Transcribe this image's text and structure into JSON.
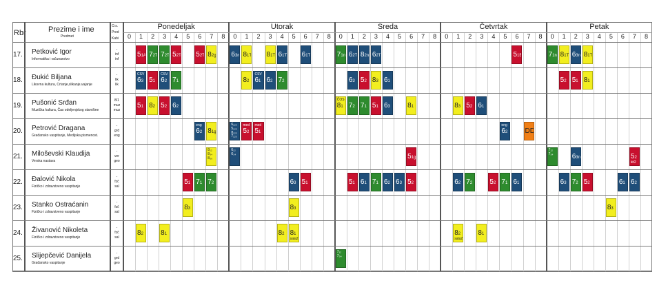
{
  "header": {
    "rbr": "Rbr",
    "name_title": "Prezime i ime",
    "name_sub": "Predmet",
    "os_lines": [
      "O.s.",
      "Pred",
      "Kabi"
    ]
  },
  "days": [
    {
      "label": "Ponedeljak",
      "periods": [
        "0",
        "1",
        "2",
        "3",
        "4",
        "5",
        "6",
        "7",
        "8"
      ]
    },
    {
      "label": "Utorak",
      "periods": [
        "0",
        "1",
        "2",
        "3",
        "4",
        "5",
        "6",
        "7",
        "8"
      ]
    },
    {
      "label": "Sreda",
      "periods": [
        "0",
        "1",
        "2",
        "3",
        "4",
        "5",
        "6",
        "7",
        "8"
      ]
    },
    {
      "label": "Četvrtak",
      "periods": [
        "0",
        "1",
        "2",
        "3",
        "4",
        "5",
        "6",
        "7",
        "8"
      ]
    },
    {
      "label": "Petak",
      "periods": [
        "0",
        "1",
        "2",
        "3",
        "4",
        "5",
        "6",
        "7",
        "8"
      ]
    }
  ],
  "colors": {
    "red": "#c8102e",
    "green": "#2e8b2e",
    "blue": "#1f4e79",
    "yellow": "#f2ee1f",
    "orange": "#f07f16"
  },
  "rows": [
    {
      "num": "17.",
      "name": "Petković Igor",
      "subject": "Informatika i računarstvo",
      "os": [
        "-",
        "inf",
        "inf"
      ],
      "cells": [
        {
          "d": 0,
          "p": 1,
          "c": "red",
          "t": "5",
          "s": "1A"
        },
        {
          "d": 0,
          "p": 2,
          "c": "green",
          "t": "7",
          "s": "2T"
        },
        {
          "d": 0,
          "p": 3,
          "c": "green",
          "t": "7",
          "s": "2T"
        },
        {
          "d": 0,
          "p": 4,
          "c": "red",
          "t": "5",
          "s": "2TT"
        },
        {
          "d": 0,
          "p": 6,
          "c": "red",
          "t": "5",
          "s": "2T"
        },
        {
          "d": 0,
          "p": 7,
          "c": "yellow",
          "t": "8",
          "s": "2gr"
        },
        {
          "d": 1,
          "p": 0,
          "c": "blue",
          "t": "6",
          "s": "3nk"
        },
        {
          "d": 1,
          "p": 1,
          "c": "yellow",
          "t": "8",
          "s": "1T1"
        },
        {
          "d": 1,
          "p": 3,
          "c": "yellow",
          "t": "8",
          "s": "1T2"
        },
        {
          "d": 1,
          "p": 4,
          "c": "blue",
          "t": "6",
          "s": "1T1"
        },
        {
          "d": 1,
          "p": 6,
          "c": "blue",
          "t": "6",
          "s": "1T"
        },
        {
          "d": 2,
          "p": 0,
          "c": "green",
          "t": "7",
          "s": "1nk"
        },
        {
          "d": 2,
          "p": 1,
          "c": "blue",
          "t": "6",
          "s": "2T2"
        },
        {
          "d": 2,
          "p": 2,
          "c": "blue",
          "t": "8",
          "s": "2nk"
        },
        {
          "d": 2,
          "p": 3,
          "c": "blue",
          "t": "6",
          "s": "2T1"
        },
        {
          "d": 3,
          "p": 6,
          "c": "red",
          "t": "5",
          "s": "1B"
        },
        {
          "d": 4,
          "p": 0,
          "c": "green",
          "t": "7",
          "s": "1nk"
        },
        {
          "d": 4,
          "p": 1,
          "c": "yellow",
          "t": "8",
          "s": "1T2"
        },
        {
          "d": 4,
          "p": 2,
          "c": "blue",
          "t": "6",
          "s": "3nk"
        },
        {
          "d": 4,
          "p": 3,
          "c": "yellow",
          "t": "8",
          "s": "1T"
        }
      ]
    },
    {
      "num": "18.",
      "name": "Đukić Biljana",
      "subject": "Likovna kultura, Crtanje,slikanje,vajanje",
      "os": [
        "-",
        "lik",
        "lik"
      ],
      "cells": [
        {
          "d": 0,
          "p": 1,
          "c": "blue",
          "t": "6",
          "s": "3",
          "top": "CSV"
        },
        {
          "d": 0,
          "p": 2,
          "c": "red",
          "t": "5",
          "s": "1"
        },
        {
          "d": 0,
          "p": 3,
          "c": "blue",
          "t": "6",
          "s": "2",
          "top": "CSV"
        },
        {
          "d": 0,
          "p": 4,
          "c": "green",
          "t": "7",
          "s": "1"
        },
        {
          "d": 1,
          "p": 1,
          "c": "yellow",
          "t": "8",
          "s": "2"
        },
        {
          "d": 1,
          "p": 2,
          "c": "blue",
          "t": "6",
          "s": "1",
          "top": "CSV"
        },
        {
          "d": 1,
          "p": 3,
          "c": "blue",
          "t": "6",
          "s": "2"
        },
        {
          "d": 1,
          "p": 4,
          "c": "green",
          "t": "7",
          "s": "2"
        },
        {
          "d": 2,
          "p": 1,
          "c": "blue",
          "t": "6",
          "s": "3"
        },
        {
          "d": 2,
          "p": 2,
          "c": "red",
          "t": "5",
          "s": "2"
        },
        {
          "d": 2,
          "p": 3,
          "c": "yellow",
          "t": "8",
          "s": "3"
        },
        {
          "d": 2,
          "p": 4,
          "c": "blue",
          "t": "6",
          "s": "1"
        },
        {
          "d": 4,
          "p": 1,
          "c": "red",
          "t": "5",
          "s": "2"
        },
        {
          "d": 4,
          "p": 2,
          "c": "red",
          "t": "5",
          "s": "1"
        },
        {
          "d": 4,
          "p": 3,
          "c": "yellow",
          "t": "8",
          "s": "1"
        }
      ]
    },
    {
      "num": "19.",
      "name": "Pušonić Srđan",
      "subject": "Muzička kultura, Čas odeljenjskog starešine",
      "os": [
        "8/1",
        "muz",
        "muz"
      ],
      "cells": [
        {
          "d": 0,
          "p": 1,
          "c": "red",
          "t": "5",
          "s": "1"
        },
        {
          "d": 0,
          "p": 2,
          "c": "yellow",
          "t": "8",
          "s": "2"
        },
        {
          "d": 0,
          "p": 3,
          "c": "red",
          "t": "5",
          "s": "2"
        },
        {
          "d": 0,
          "p": 4,
          "c": "blue",
          "t": "6",
          "s": "2"
        },
        {
          "d": 2,
          "p": 0,
          "c": "yellow",
          "t": "8",
          "s": "1",
          "top": "ČOS"
        },
        {
          "d": 2,
          "p": 1,
          "c": "green",
          "t": "7",
          "s": "2"
        },
        {
          "d": 2,
          "p": 2,
          "c": "green",
          "t": "7",
          "s": "1"
        },
        {
          "d": 2,
          "p": 3,
          "c": "red",
          "t": "5",
          "s": "1"
        },
        {
          "d": 2,
          "p": 4,
          "c": "blue",
          "t": "6",
          "s": "3"
        },
        {
          "d": 2,
          "p": 6,
          "c": "yellow",
          "t": "8",
          "s": "1"
        },
        {
          "d": 3,
          "p": 1,
          "c": "yellow",
          "t": "8",
          "s": "3"
        },
        {
          "d": 3,
          "p": 2,
          "c": "red",
          "t": "5",
          "s": "2"
        },
        {
          "d": 3,
          "p": 3,
          "c": "blue",
          "t": "6",
          "s": "1"
        }
      ]
    },
    {
      "num": "20.",
      "name": "Petrović Dragana",
      "subject": "Građansko vaspitanje, Medijska pismenost.",
      "os": [
        "-",
        "grd",
        "eng"
      ],
      "cells": [
        {
          "d": 0,
          "p": 6,
          "c": "blue",
          "t": "6",
          "s": "2",
          "top": "eng"
        },
        {
          "d": 0,
          "p": 7,
          "c": "yellow",
          "t": "8",
          "s": "1gr"
        },
        {
          "d": 1,
          "p": 0,
          "c": "blue",
          "small": [
            "6₁₂₃",
            "5₁₂₃",
            "8₁₂₃",
            "7₁₂₃"
          ]
        },
        {
          "d": 1,
          "p": 1,
          "c": "red",
          "t": "5",
          "s": "2",
          "top": "med"
        },
        {
          "d": 1,
          "p": 2,
          "c": "red",
          "t": "5",
          "s": "1",
          "top": "med"
        },
        {
          "d": 3,
          "p": 5,
          "c": "blue",
          "t": "6",
          "s": "2",
          "top": "eng"
        },
        {
          "d": 3,
          "p": 7,
          "c": "orange",
          "t": "DD",
          "s": "[]"
        }
      ]
    },
    {
      "num": "21.",
      "name": "Miloševski Klaudija",
      "subject": "Verska nastava",
      "os": [
        "-",
        "ver",
        "geo"
      ],
      "cells": [
        {
          "d": 0,
          "p": 7,
          "c": "yellow",
          "small": [
            "8₁₂",
            "8₃₄",
            "8₅₆"
          ]
        },
        {
          "d": 1,
          "p": 0,
          "c": "blue",
          "small": [
            "6₁₂",
            "6₃₄"
          ]
        },
        {
          "d": 2,
          "p": 6,
          "c": "red",
          "t": "5",
          "s": "1gr"
        },
        {
          "d": 4,
          "p": 0,
          "c": "green",
          "small": [
            "7₁₂",
            "7₃₄"
          ]
        },
        {
          "d": 4,
          "p": 2,
          "c": "blue",
          "t": "6",
          "s": "3nk"
        },
        {
          "d": 4,
          "p": 7,
          "c": "red",
          "t": "5",
          "s": "2",
          "bot": "kit2"
        }
      ]
    },
    {
      "num": "22.",
      "name": "Đalović Nikola",
      "subject": "Fizičko i zdravstveno vaspitanje",
      "os": [
        "-",
        "fzč",
        "sal"
      ],
      "cells": [
        {
          "d": 0,
          "p": 5,
          "c": "red",
          "t": "5",
          "s": "1"
        },
        {
          "d": 0,
          "p": 6,
          "c": "green",
          "t": "7",
          "s": "1"
        },
        {
          "d": 0,
          "p": 7,
          "c": "green",
          "t": "7",
          "s": "2"
        },
        {
          "d": 1,
          "p": 5,
          "c": "blue",
          "t": "6",
          "s": "3"
        },
        {
          "d": 1,
          "p": 6,
          "c": "red",
          "t": "5",
          "s": "1"
        },
        {
          "d": 2,
          "p": 1,
          "c": "red",
          "t": "5",
          "s": "1"
        },
        {
          "d": 2,
          "p": 2,
          "c": "blue",
          "t": "6",
          "s": "1"
        },
        {
          "d": 2,
          "p": 3,
          "c": "green",
          "t": "7",
          "s": "1"
        },
        {
          "d": 2,
          "p": 4,
          "c": "blue",
          "t": "6",
          "s": "2"
        },
        {
          "d": 2,
          "p": 5,
          "c": "blue",
          "t": "6",
          "s": "3"
        },
        {
          "d": 2,
          "p": 6,
          "c": "red",
          "t": "5",
          "s": "2"
        },
        {
          "d": 3,
          "p": 1,
          "c": "blue",
          "t": "6",
          "s": "2"
        },
        {
          "d": 3,
          "p": 2,
          "c": "green",
          "t": "7",
          "s": "2"
        },
        {
          "d": 3,
          "p": 4,
          "c": "red",
          "t": "5",
          "s": "2"
        },
        {
          "d": 3,
          "p": 5,
          "c": "green",
          "t": "7",
          "s": "1"
        },
        {
          "d": 3,
          "p": 6,
          "c": "blue",
          "t": "6",
          "s": "1"
        },
        {
          "d": 4,
          "p": 1,
          "c": "blue",
          "t": "6",
          "s": "3"
        },
        {
          "d": 4,
          "p": 2,
          "c": "green",
          "t": "7",
          "s": "2"
        },
        {
          "d": 4,
          "p": 3,
          "c": "red",
          "t": "5",
          "s": "2"
        },
        {
          "d": 4,
          "p": 6,
          "c": "blue",
          "t": "6",
          "s": "1"
        },
        {
          "d": 4,
          "p": 7,
          "c": "blue",
          "t": "6",
          "s": "2"
        }
      ]
    },
    {
      "num": "23.",
      "name": "Stanko Ostraćanin",
      "subject": "Fizičko i zdravstveno vaspitanje",
      "os": [
        "-",
        "fzč",
        "sal"
      ],
      "cells": [
        {
          "d": 0,
          "p": 5,
          "c": "yellow",
          "t": "8",
          "s": "3"
        },
        {
          "d": 1,
          "p": 5,
          "c": "yellow",
          "t": "8",
          "s": "3"
        },
        {
          "d": 4,
          "p": 5,
          "c": "yellow",
          "t": "8",
          "s": "3"
        }
      ]
    },
    {
      "num": "24.",
      "name": "Živanović Nikoleta",
      "subject": "Fizičko i zdravstveno vaspitanje",
      "os": [
        "-",
        "fzč",
        "sal"
      ],
      "cells": [
        {
          "d": 0,
          "p": 1,
          "c": "yellow",
          "t": "8",
          "s": "2"
        },
        {
          "d": 0,
          "p": 3,
          "c": "yellow",
          "t": "8",
          "s": "1"
        },
        {
          "d": 1,
          "p": 4,
          "c": "yellow",
          "t": "8",
          "s": "2"
        },
        {
          "d": 1,
          "p": 5,
          "c": "yellow",
          "t": "8",
          "s": "1",
          "bot": "sala2"
        },
        {
          "d": 3,
          "p": 1,
          "c": "yellow",
          "t": "8",
          "s": "2",
          "bot": "sala2"
        },
        {
          "d": 3,
          "p": 3,
          "c": "yellow",
          "t": "8",
          "s": "1"
        }
      ]
    },
    {
      "num": "25.",
      "name": "Slijepčević Danijela",
      "subject": "Građansko vaspitanje",
      "os": [
        "-",
        "grd",
        "geo"
      ],
      "cells": [
        {
          "d": 2,
          "p": 0,
          "c": "green",
          "small": [
            "7₁₂",
            "7₃₄"
          ]
        }
      ]
    }
  ]
}
